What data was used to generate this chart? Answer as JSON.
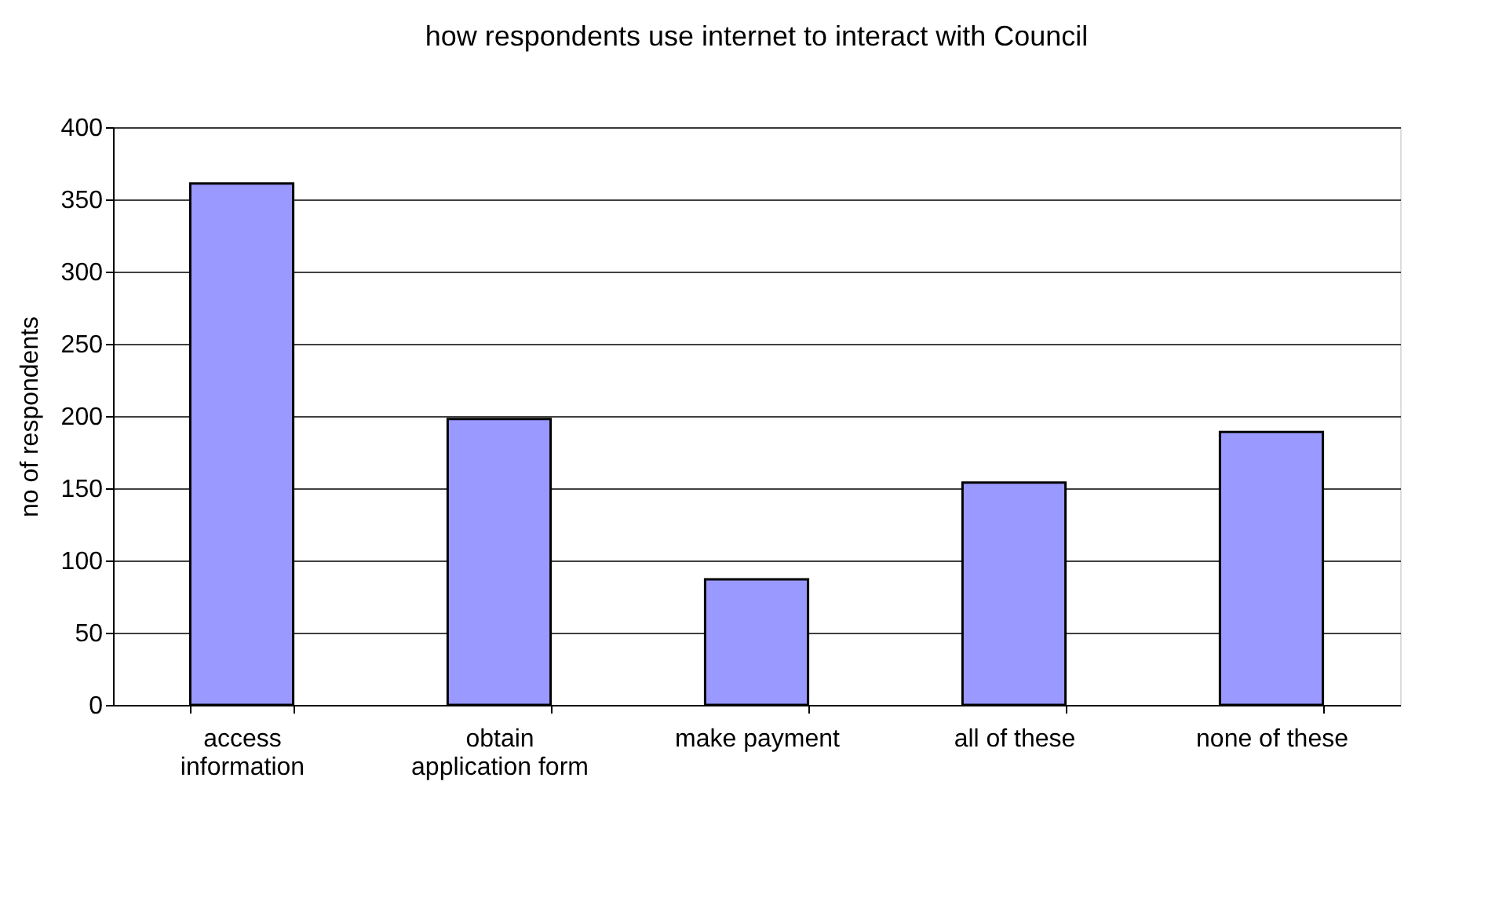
{
  "chart_data": {
    "type": "bar",
    "title": "how respondents use internet to interact with Council",
    "ylabel": "no of respondents",
    "categories": [
      "access\ninformation",
      "obtain\napplication form",
      "make payment",
      "all of these",
      "none of these"
    ],
    "values": [
      361,
      198,
      87,
      154,
      189
    ],
    "color": "#9999ff",
    "ylim": [
      0,
      400
    ],
    "yticks": [
      0,
      50,
      100,
      150,
      200,
      250,
      300,
      350,
      400
    ],
    "grid": "y"
  }
}
